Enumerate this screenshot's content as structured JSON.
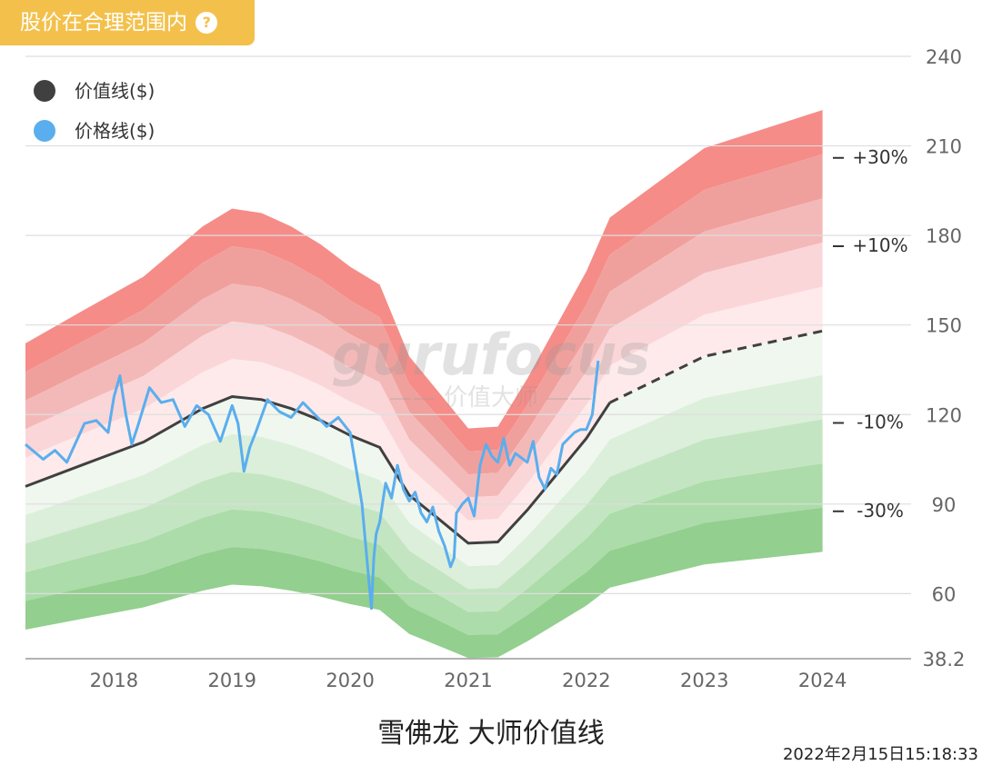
{
  "badge": {
    "label": "股价在合理范围内",
    "help_icon": "question-circle-icon",
    "color": "#f3c14b"
  },
  "watermark": {
    "brand": "gurufocus",
    "sub": "—— 价值大师 ——"
  },
  "footer": {
    "title": "雪佛龙 大师价值线",
    "timestamp": "2022年2月15日15:18:33"
  },
  "chart_data": {
    "type": "area",
    "title": "雪佛龙 大师价值线",
    "y_axis": {
      "position": "right",
      "ticks": [
        240,
        210,
        180,
        150,
        120,
        90,
        60,
        38.2
      ],
      "min": 38.2,
      "max": 240
    },
    "x_axis": {
      "ticks": [
        2018,
        2019,
        2020,
        2021,
        2022,
        2023,
        2024
      ],
      "min": 2017.25,
      "max": 2024.75
    },
    "grid": true,
    "legend": {
      "position": "top-left",
      "items": [
        {
          "label": "价值线($)",
          "color": "#404040"
        },
        {
          "label": "价格线($)",
          "color": "#5aaeee"
        }
      ]
    },
    "band_labels": [
      "+30%",
      "+10%",
      "-10%",
      "-30%"
    ],
    "band_multipliers": [
      1.5,
      1.4,
      1.3,
      1.2,
      1.1,
      1.0,
      0.9,
      0.8,
      0.7,
      0.6,
      0.5
    ],
    "band_colors": [
      "#f58c88",
      "#f0a09c",
      "#f3b9b8",
      "#fbd6d8",
      "#feeaea",
      "#f0f7ef",
      "#dcefda",
      "#c4e5c2",
      "#acdca9",
      "#93cf8e"
    ],
    "value_line": {
      "name": "价值线($)",
      "x": [
        2017.25,
        2017.75,
        2018.25,
        2018.75,
        2019.0,
        2019.25,
        2019.5,
        2019.75,
        2020.0,
        2020.25,
        2020.5,
        2020.75,
        2021.0,
        2021.25,
        2021.5,
        2021.75,
        2022.0,
        2022.2,
        2023.0,
        2024.0
      ],
      "y": [
        95.9,
        103.4,
        110.8,
        122.0,
        126.0,
        125.0,
        122.0,
        118.0,
        113.0,
        109.0,
        93.0,
        85.0,
        76.9,
        77.3,
        88.0,
        100.0,
        112.0,
        124.0,
        139.5,
        148.0
      ]
    },
    "value_line_projected_from": 2022.2,
    "price_line": {
      "name": "价格线($)",
      "x": [
        2017.25,
        2017.4,
        2017.5,
        2017.6,
        2017.75,
        2017.85,
        2017.95,
        2018.0,
        2018.05,
        2018.1,
        2018.15,
        2018.2,
        2018.3,
        2018.4,
        2018.5,
        2018.6,
        2018.7,
        2018.8,
        2018.9,
        2019.0,
        2019.05,
        2019.1,
        2019.15,
        2019.2,
        2019.3,
        2019.4,
        2019.5,
        2019.6,
        2019.7,
        2019.8,
        2019.9,
        2020.0,
        2020.05,
        2020.1,
        2020.15,
        2020.18,
        2020.2,
        2020.22,
        2020.25,
        2020.3,
        2020.35,
        2020.4,
        2020.45,
        2020.5,
        2020.55,
        2020.6,
        2020.65,
        2020.7,
        2020.75,
        2020.8,
        2020.85,
        2020.88,
        2020.9,
        2020.95,
        2021.0,
        2021.05,
        2021.1,
        2021.15,
        2021.2,
        2021.25,
        2021.3,
        2021.35,
        2021.4,
        2021.5,
        2021.55,
        2021.6,
        2021.65,
        2021.7,
        2021.75,
        2021.8,
        2021.85,
        2021.9,
        2021.95,
        2022.0,
        2022.05,
        2022.1
      ],
      "y": [
        110,
        105,
        108,
        104,
        117,
        118,
        114,
        126,
        133,
        120,
        110,
        116,
        129,
        124,
        125,
        116,
        123,
        120,
        111,
        123,
        117,
        101,
        109,
        114,
        125,
        121,
        119,
        124,
        120,
        116,
        119,
        114,
        102,
        90,
        68,
        55,
        72,
        80,
        84,
        97,
        92,
        103,
        95,
        91,
        94,
        87,
        84,
        89,
        81,
        76,
        69,
        72,
        87,
        90,
        92,
        86,
        103,
        110,
        106,
        104,
        112,
        103,
        107,
        104,
        111,
        99,
        95,
        102,
        100,
        110,
        112,
        114,
        115,
        115,
        120,
        138
      ]
    }
  }
}
